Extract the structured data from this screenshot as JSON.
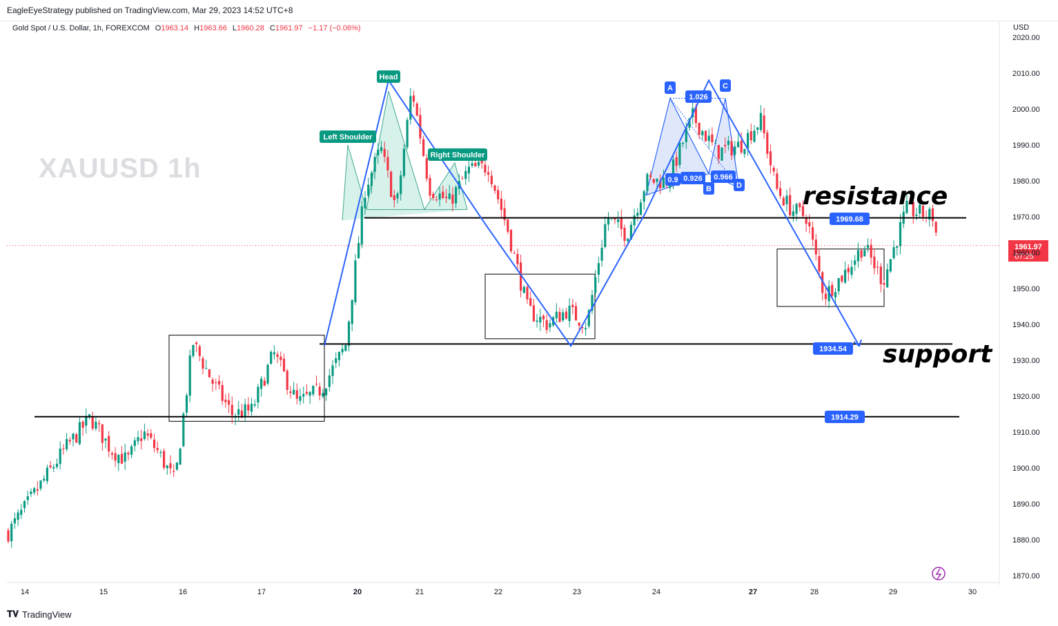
{
  "header": {
    "publisher": "EagleEyeStrategy published on TradingView.com, Mar 29, 2023 14:52 UTC+8",
    "symbol": "Gold Spot / U.S. Dollar, 1h, FOREXCOM",
    "ohlc": {
      "o_key": "O",
      "o": "1963.14",
      "h_key": "H",
      "h": "1963.66",
      "l_key": "L",
      "l": "1960.28",
      "c_key": "C",
      "c": "1961.97",
      "change": "−1.17 (−0.06%)"
    },
    "currency": "USD"
  },
  "watermark": "XAUUSD  1h",
  "footer": {
    "brand": "TradingView"
  },
  "colors": {
    "up": "#089981",
    "down": "#f23645",
    "pattern_line": "#2962ff",
    "hs_label": "#089981",
    "hs_fill": "#cdeee6",
    "xabcd_fill": "#dce5fb"
  },
  "chart_data": {
    "type": "candlestick",
    "instrument": "XAUUSD",
    "timeframe": "1h",
    "ylim": [
      1866,
      2022
    ],
    "y_ticks": [
      "1870.00",
      "1880.00",
      "1890.00",
      "1900.00",
      "1910.00",
      "1920.00",
      "1930.00",
      "1940.00",
      "1950.00",
      "1960.00",
      "1970.00",
      "1980.00",
      "1990.00",
      "2000.00",
      "2010.00",
      "2020.00"
    ],
    "x_ticks": [
      "14",
      "15",
      "16",
      "17",
      "20",
      "21",
      "22",
      "23",
      "24",
      "27",
      "28",
      "29",
      "30"
    ],
    "last_price": "1961.97",
    "countdown": "07:25",
    "price_path": [
      {
        "t": "14",
        "p": 1882
      },
      {
        "t": "14",
        "p": 1905
      },
      {
        "t": "14",
        "p": 1914
      },
      {
        "t": "15",
        "p": 1905
      },
      {
        "t": "15",
        "p": 1902
      },
      {
        "t": "15",
        "p": 1910
      },
      {
        "t": "15",
        "p": 1904
      },
      {
        "t": "15",
        "p": 1896
      },
      {
        "t": "16",
        "p": 1935
      },
      {
        "t": "16",
        "p": 1924
      },
      {
        "t": "16",
        "p": 1915
      },
      {
        "t": "16",
        "p": 1916
      },
      {
        "t": "17",
        "p": 1932
      },
      {
        "t": "17",
        "p": 1918
      },
      {
        "t": "17",
        "p": 1922
      },
      {
        "t": "17",
        "p": 1934
      },
      {
        "t": "20",
        "p": 1978
      },
      {
        "t": "20",
        "p": 1989
      },
      {
        "t": "20",
        "p": 1972
      },
      {
        "t": "20",
        "p": 2006
      },
      {
        "t": "21",
        "p": 1978
      },
      {
        "t": "21",
        "p": 1974
      },
      {
        "t": "21",
        "p": 1983
      },
      {
        "t": "21",
        "p": 1984
      },
      {
        "t": "22",
        "p": 1966
      },
      {
        "t": "22",
        "p": 1944
      },
      {
        "t": "22",
        "p": 1940
      },
      {
        "t": "22",
        "p": 1944
      },
      {
        "t": "23",
        "p": 1940
      },
      {
        "t": "23",
        "p": 1970
      },
      {
        "t": "23",
        "p": 1965
      },
      {
        "t": "23",
        "p": 1980
      },
      {
        "t": "24",
        "p": 1980
      },
      {
        "t": "24",
        "p": 1998
      },
      {
        "t": "24",
        "p": 1988
      },
      {
        "t": "24",
        "p": 1990
      },
      {
        "t": "27",
        "p": 1997
      },
      {
        "t": "27",
        "p": 1978
      },
      {
        "t": "27",
        "p": 1972
      },
      {
        "t": "27",
        "p": 1970
      },
      {
        "t": "28",
        "p": 1948
      },
      {
        "t": "28",
        "p": 1954
      },
      {
        "t": "28",
        "p": 1962
      },
      {
        "t": "28",
        "p": 1952
      },
      {
        "t": "29",
        "p": 1972
      },
      {
        "t": "29",
        "p": 1970
      },
      {
        "t": "29",
        "p": 1961.97
      }
    ],
    "levels": [
      {
        "label": "1969.68",
        "value": 1969.68
      },
      {
        "label": "1934.54",
        "value": 1934.54
      },
      {
        "label": "1914.29",
        "value": 1914.29
      }
    ],
    "head_and_shoulders": {
      "left_shoulder": "Left Shoulder",
      "head": "Head",
      "right_shoulder": "Right Shoulder"
    },
    "harmonic": {
      "points": [
        "A",
        "B",
        "C",
        "D"
      ],
      "ratios": [
        "1.026",
        "0.9",
        "0.926",
        "0.966"
      ]
    },
    "annotations": {
      "resistance": "resistance",
      "support": "support"
    }
  }
}
